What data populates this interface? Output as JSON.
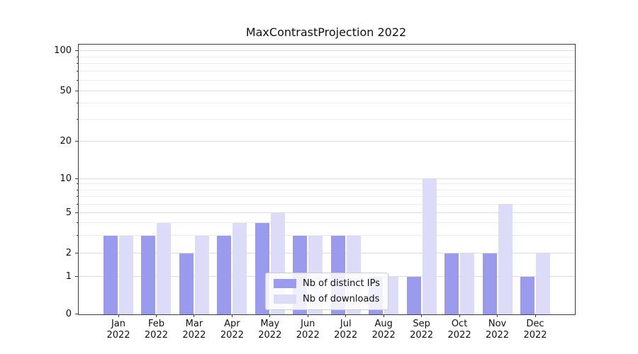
{
  "chart_data": {
    "type": "bar",
    "title": "MaxContrastProjection 2022",
    "categories": [
      "Jan",
      "Feb",
      "Mar",
      "Apr",
      "May",
      "Jun",
      "Jul",
      "Aug",
      "Sep",
      "Oct",
      "Nov",
      "Dec"
    ],
    "year_label": "2022",
    "series": [
      {
        "id": "distinct-ips",
        "name": "Nb of distinct IPs",
        "color": "#9b9bee",
        "values": [
          3,
          3,
          2,
          3,
          4,
          3,
          3,
          1,
          1,
          2,
          2,
          1
        ]
      },
      {
        "id": "downloads",
        "name": "Nb of downloads",
        "color": "#dcdcf8",
        "values": [
          3,
          4,
          3,
          4,
          5,
          3,
          3,
          1,
          10,
          2,
          6,
          2
        ]
      }
    ],
    "yaxis": {
      "scale": "symlog",
      "ticks": [
        0,
        1,
        2,
        5,
        10,
        20,
        50,
        100
      ],
      "minor_gridlines": [
        3,
        4,
        6,
        7,
        8,
        9,
        30,
        40,
        60,
        70,
        80,
        90
      ],
      "range": [
        0,
        110
      ]
    },
    "xlabel": "",
    "ylabel": "",
    "grid": true,
    "legend_position": "lower center"
  }
}
